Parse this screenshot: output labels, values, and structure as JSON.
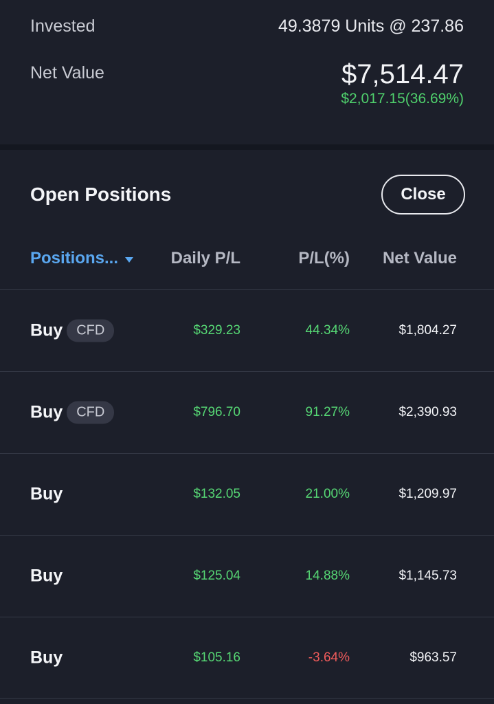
{
  "summary": {
    "invested_label": "Invested",
    "invested_value": "49.3879 Units @ 237.86",
    "net_label": "Net Value",
    "net_value": "$7,514.47",
    "net_change": "$2,017.15(36.69%)"
  },
  "positions": {
    "title": "Open Positions",
    "close_label": "Close",
    "columns": {
      "positions": "Positions...",
      "daily": "Daily P/L",
      "pl": "P/L(%)",
      "net": "Net Value"
    },
    "rows": [
      {
        "side": "Buy",
        "badge": "CFD",
        "daily": "$329.23",
        "pl": "44.34%",
        "pl_color": "#56d774",
        "net": "$1,804.27"
      },
      {
        "side": "Buy",
        "badge": "CFD",
        "daily": "$796.70",
        "pl": "91.27%",
        "pl_color": "#56d774",
        "net": "$2,390.93"
      },
      {
        "side": "Buy",
        "badge": "",
        "daily": "$132.05",
        "pl": "21.00%",
        "pl_color": "#56d774",
        "net": "$1,209.97"
      },
      {
        "side": "Buy",
        "badge": "",
        "daily": "$125.04",
        "pl": "14.88%",
        "pl_color": "#56d774",
        "net": "$1,145.73"
      },
      {
        "side": "Buy",
        "badge": "",
        "daily": "$105.16",
        "pl": "-3.64%",
        "pl_color": "#ef5b5b",
        "net": "$963.57"
      }
    ]
  },
  "colors": {
    "background": "#1c1f2a",
    "positive": "#56d774",
    "negative": "#ef5b5b",
    "accent": "#5aa7f0"
  }
}
